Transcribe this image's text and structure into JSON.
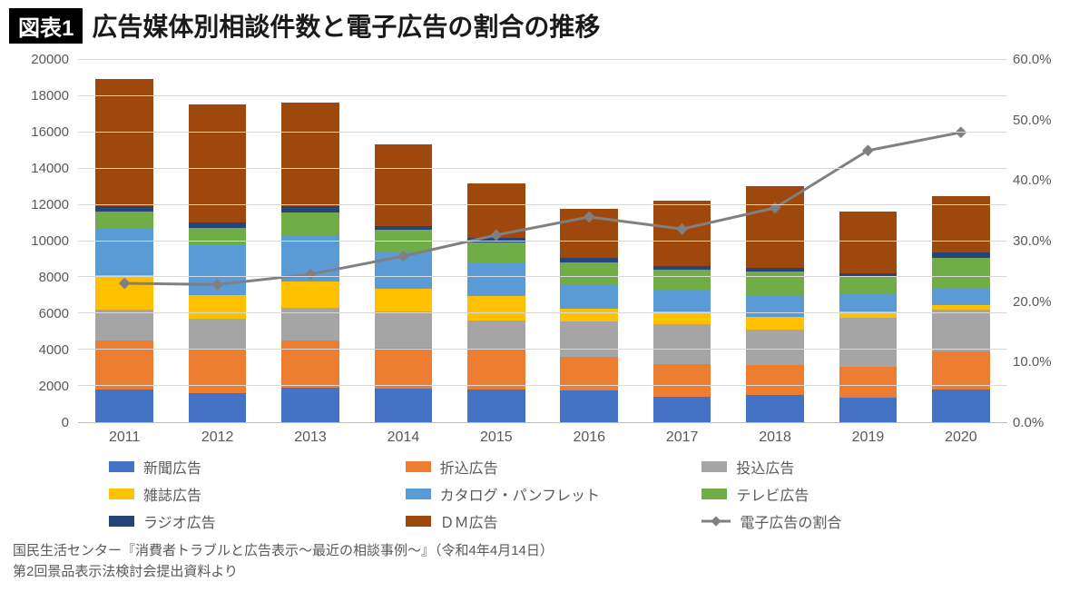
{
  "header": {
    "badge": "図表1",
    "title": "広告媒体別相談件数と電子広告の割合の推移"
  },
  "chart": {
    "type": "stacked-bar-with-line",
    "background_color": "#ffffff",
    "grid_color": "#d9d9d9",
    "axis_color": "#bfbfbf",
    "label_color": "#595959",
    "label_fontsize": 15,
    "left_axis": {
      "min": 0,
      "max": 20000,
      "step": 2000
    },
    "right_axis": {
      "min": 0.0,
      "max": 60.0,
      "step": 10.0,
      "suffix": "%",
      "decimals": 1
    },
    "categories": [
      "2011",
      "2012",
      "2013",
      "2014",
      "2015",
      "2016",
      "2017",
      "2018",
      "2019",
      "2020"
    ],
    "bar_width_pct": 62,
    "series": [
      {
        "key": "newspaper",
        "label": "新聞広告",
        "color": "#4472c4",
        "values": [
          1800,
          1600,
          1900,
          1850,
          1800,
          1750,
          1400,
          1500,
          1350,
          1800
        ]
      },
      {
        "key": "insert",
        "label": "折込広告",
        "color": "#ed7d31",
        "values": [
          2700,
          2400,
          2600,
          2250,
          2200,
          1850,
          1800,
          1650,
          1700,
          2100
        ]
      },
      {
        "key": "posting",
        "label": "投込広告",
        "color": "#a5a5a5",
        "values": [
          1700,
          1700,
          1800,
          2000,
          1600,
          1950,
          2200,
          1950,
          2700,
          2300
        ]
      },
      {
        "key": "magazine",
        "label": "雑誌広告",
        "color": "#ffc000",
        "values": [
          1900,
          1300,
          1450,
          1250,
          1350,
          700,
          700,
          700,
          350,
          250
        ]
      },
      {
        "key": "catalog",
        "label": "カタログ・パンフレット",
        "color": "#5b9bd5",
        "values": [
          2600,
          2800,
          2500,
          2000,
          1850,
          1300,
          1200,
          1200,
          1000,
          900
        ]
      },
      {
        "key": "tv",
        "label": "テレビ広告",
        "color": "#70ad47",
        "values": [
          900,
          900,
          1300,
          1250,
          1100,
          1250,
          1100,
          1300,
          900,
          1700
        ]
      },
      {
        "key": "radio",
        "label": "ラジオ広告",
        "color": "#264478",
        "values": [
          300,
          300,
          350,
          200,
          250,
          250,
          200,
          200,
          200,
          300
        ]
      },
      {
        "key": "dm",
        "label": "ＤＭ広告",
        "color": "#9e480e",
        "values": [
          7000,
          6500,
          5700,
          4500,
          3000,
          2700,
          3600,
          4500,
          3400,
          3100
        ]
      }
    ],
    "line": {
      "label": "電子広告の割合",
      "color": "#808080",
      "width": 3,
      "marker": "diamond",
      "marker_size": 9,
      "values": [
        23.0,
        22.8,
        24.5,
        27.5,
        31.0,
        34.0,
        32.0,
        35.5,
        45.0,
        48.0
      ]
    }
  },
  "legend": {
    "columns": 3,
    "items": [
      {
        "type": "box",
        "series": "newspaper"
      },
      {
        "type": "box",
        "series": "insert"
      },
      {
        "type": "box",
        "series": "posting"
      },
      {
        "type": "box",
        "series": "magazine"
      },
      {
        "type": "box",
        "series": "catalog"
      },
      {
        "type": "box",
        "series": "tv"
      },
      {
        "type": "box",
        "series": "radio"
      },
      {
        "type": "box",
        "series": "dm"
      },
      {
        "type": "line",
        "series": "line"
      }
    ]
  },
  "source": {
    "line1": "国民生活センター『消費者トラブルと広告表示～最近の相談事例～』（令和4年4月14日）",
    "line2": "第2回景品表示法検討会提出資料より"
  }
}
